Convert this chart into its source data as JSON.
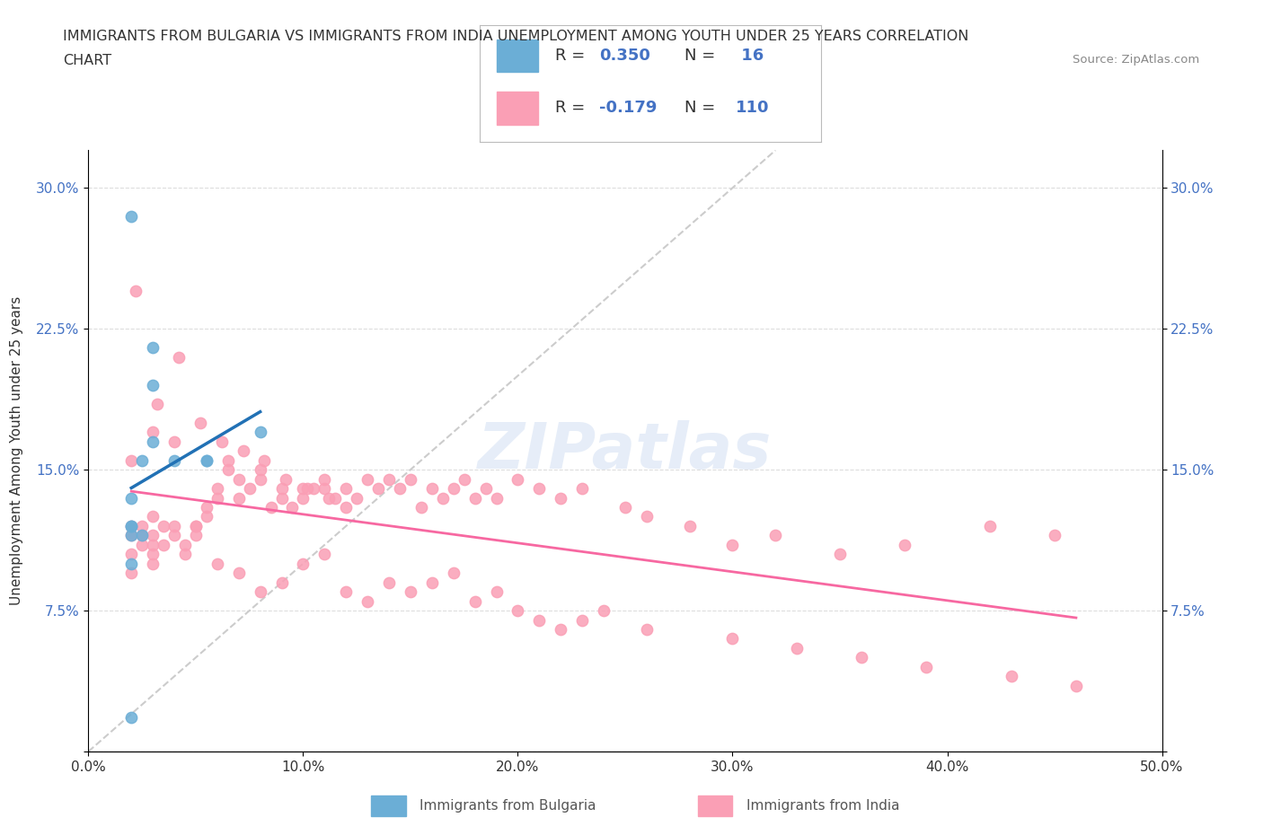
{
  "title_line1": "IMMIGRANTS FROM BULGARIA VS IMMIGRANTS FROM INDIA UNEMPLOYMENT AMONG YOUTH UNDER 25 YEARS CORRELATION",
  "title_line2": "CHART",
  "source": "Source: ZipAtlas.com",
  "ylabel": "Unemployment Among Youth under 25 years",
  "xlim": [
    0.0,
    0.5
  ],
  "ylim": [
    0.0,
    0.32
  ],
  "xticks": [
    0.0,
    0.1,
    0.2,
    0.3,
    0.4,
    0.5
  ],
  "xticklabels": [
    "0.0%",
    "10.0%",
    "20.0%",
    "30.0%",
    "40.0%",
    "50.0%"
  ],
  "yticks": [
    0.0,
    0.075,
    0.15,
    0.225,
    0.3
  ],
  "yticklabels_left": [
    "",
    "7.5%",
    "15.0%",
    "22.5%",
    "30.0%"
  ],
  "yticklabels_right": [
    "",
    "7.5%",
    "15.0%",
    "22.5%",
    "30.0%"
  ],
  "R_bulgaria": 0.35,
  "N_bulgaria": 16,
  "R_india": -0.179,
  "N_india": 110,
  "color_bulgaria": "#6baed6",
  "color_india": "#fa9fb5",
  "color_trendline_bulgaria": "#2171b5",
  "color_trendline_india": "#f768a1",
  "color_trendline_diag": "#cccccc",
  "watermark": "ZIPatlas",
  "bulgaria_x": [
    0.02,
    0.02,
    0.02,
    0.02,
    0.02,
    0.025,
    0.025,
    0.03,
    0.03,
    0.04,
    0.055,
    0.055,
    0.02,
    0.03,
    0.08,
    0.02
  ],
  "bulgaria_y": [
    0.12,
    0.135,
    0.1,
    0.115,
    0.12,
    0.115,
    0.155,
    0.165,
    0.195,
    0.155,
    0.155,
    0.155,
    0.285,
    0.215,
    0.17,
    0.018
  ],
  "india_x": [
    0.02,
    0.02,
    0.02,
    0.02,
    0.025,
    0.025,
    0.025,
    0.03,
    0.03,
    0.03,
    0.03,
    0.03,
    0.035,
    0.035,
    0.04,
    0.04,
    0.045,
    0.045,
    0.05,
    0.05,
    0.055,
    0.055,
    0.06,
    0.06,
    0.065,
    0.065,
    0.07,
    0.07,
    0.075,
    0.08,
    0.08,
    0.085,
    0.09,
    0.09,
    0.095,
    0.1,
    0.1,
    0.105,
    0.11,
    0.11,
    0.115,
    0.12,
    0.12,
    0.125,
    0.13,
    0.135,
    0.14,
    0.145,
    0.15,
    0.155,
    0.16,
    0.165,
    0.17,
    0.175,
    0.18,
    0.185,
    0.19,
    0.2,
    0.21,
    0.22,
    0.23,
    0.25,
    0.26,
    0.28,
    0.3,
    0.32,
    0.35,
    0.38,
    0.42,
    0.45,
    0.02,
    0.03,
    0.04,
    0.05,
    0.06,
    0.07,
    0.08,
    0.09,
    0.1,
    0.11,
    0.12,
    0.13,
    0.14,
    0.15,
    0.16,
    0.17,
    0.18,
    0.19,
    0.2,
    0.21,
    0.22,
    0.23,
    0.24,
    0.26,
    0.3,
    0.33,
    0.36,
    0.39,
    0.43,
    0.46,
    0.022,
    0.032,
    0.042,
    0.052,
    0.062,
    0.072,
    0.082,
    0.092,
    0.102,
    0.112
  ],
  "india_y": [
    0.12,
    0.105,
    0.115,
    0.095,
    0.12,
    0.115,
    0.11,
    0.125,
    0.115,
    0.105,
    0.11,
    0.1,
    0.12,
    0.11,
    0.115,
    0.12,
    0.11,
    0.105,
    0.12,
    0.115,
    0.13,
    0.125,
    0.14,
    0.135,
    0.155,
    0.15,
    0.145,
    0.135,
    0.14,
    0.145,
    0.15,
    0.13,
    0.135,
    0.14,
    0.13,
    0.14,
    0.135,
    0.14,
    0.145,
    0.14,
    0.135,
    0.14,
    0.13,
    0.135,
    0.145,
    0.14,
    0.145,
    0.14,
    0.145,
    0.13,
    0.14,
    0.135,
    0.14,
    0.145,
    0.135,
    0.14,
    0.135,
    0.145,
    0.14,
    0.135,
    0.14,
    0.13,
    0.125,
    0.12,
    0.11,
    0.115,
    0.105,
    0.11,
    0.12,
    0.115,
    0.155,
    0.17,
    0.165,
    0.12,
    0.1,
    0.095,
    0.085,
    0.09,
    0.1,
    0.105,
    0.085,
    0.08,
    0.09,
    0.085,
    0.09,
    0.095,
    0.08,
    0.085,
    0.075,
    0.07,
    0.065,
    0.07,
    0.075,
    0.065,
    0.06,
    0.055,
    0.05,
    0.045,
    0.04,
    0.035,
    0.245,
    0.185,
    0.21,
    0.175,
    0.165,
    0.16,
    0.155,
    0.145,
    0.14,
    0.135
  ]
}
